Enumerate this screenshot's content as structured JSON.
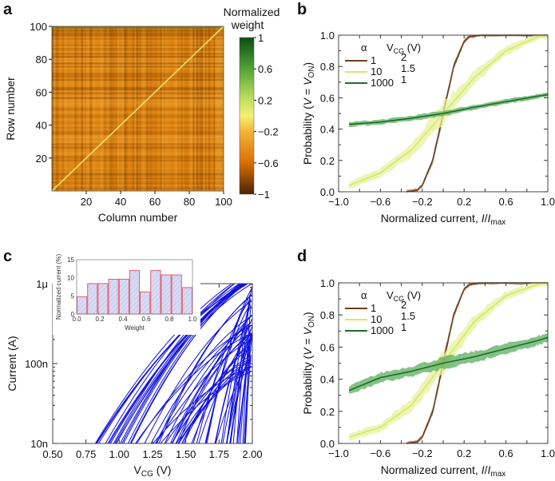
{
  "panel_labels": [
    "a",
    "b",
    "c",
    "d"
  ],
  "chart_data": [
    {
      "id": "a",
      "type": "heatmap",
      "xlabel": "Column number",
      "ylabel": "Row number",
      "x_range": [
        0,
        100
      ],
      "y_range": [
        0,
        100
      ],
      "xticks": [
        20,
        40,
        60,
        80,
        100
      ],
      "yticks": [
        20,
        40,
        60,
        80,
        100
      ],
      "size": [
        100,
        100
      ],
      "base_value": -0.5,
      "diagonal_value": -0.05,
      "colorbar": {
        "title_line1": "Normalized",
        "title_line2": "weight",
        "range": [
          -1,
          1
        ],
        "ticks": [
          "1",
          "0.6",
          "0.2",
          "−0.2",
          "−0.6",
          "−1"
        ],
        "tick_values": [
          1,
          0.6,
          0.2,
          -0.2,
          -0.6,
          -1
        ],
        "stops": [
          {
            "v": -1,
            "color": "#4a2400"
          },
          {
            "v": -0.6,
            "color": "#d86f00"
          },
          {
            "v": -0.2,
            "color": "#f5b43a"
          },
          {
            "v": 0,
            "color": "#f2f070"
          },
          {
            "v": 0.2,
            "color": "#c4e062"
          },
          {
            "v": 0.6,
            "color": "#54a336"
          },
          {
            "v": 1,
            "color": "#0b4f12"
          }
        ]
      }
    },
    {
      "id": "b",
      "type": "line",
      "xlabel": {
        "main": "Normalized current, ",
        "i": "I",
        "slash": "/",
        "i2": "I",
        "sub": "max"
      },
      "ylabel": {
        "pre": "Probability (",
        "v": "V",
        "eq": " = ",
        "v2": "V",
        "sub": "ON",
        "post": ")"
      },
      "xlim": [
        -1,
        1
      ],
      "ylim": [
        0,
        1
      ],
      "xticks": [
        "−1.0",
        "−0.6",
        "−0.2",
        "0.2",
        "0.6",
        "1.0"
      ],
      "xtick_values": [
        -1,
        -0.6,
        -0.2,
        0.2,
        0.6,
        1
      ],
      "yticks": [
        "0.0",
        "0.2",
        "0.4",
        "0.6",
        "0.8",
        "1.0"
      ],
      "ytick_values": [
        0,
        0.2,
        0.4,
        0.6,
        0.8,
        1
      ],
      "legend": {
        "alpha_header": "α",
        "vcg_header_main": "V",
        "vcg_header_sub": "CG",
        "vcg_header_unit": " (V)",
        "placement": "top-left"
      },
      "series": [
        {
          "alpha": "1",
          "vcg": "2",
          "color": "#6b3f1f",
          "band": "#a07a5a",
          "band_width": 0.03,
          "x": [
            -0.35,
            -0.25,
            -0.2,
            -0.1,
            0,
            0.1,
            0.2,
            0.25,
            0.35,
            1.0
          ],
          "y": [
            0,
            0.01,
            0.04,
            0.2,
            0.5,
            0.8,
            0.96,
            0.99,
            1,
            1
          ]
        },
        {
          "alpha": "10",
          "vcg": "1.5",
          "color": "#d4e86a",
          "band": "#e6f29a",
          "band_width": 0.06,
          "x": [
            -0.9,
            -0.6,
            -0.3,
            0,
            0.3,
            0.6,
            0.9,
            1.0
          ],
          "y": [
            0.04,
            0.12,
            0.27,
            0.5,
            0.73,
            0.9,
            0.99,
            1.0
          ]
        },
        {
          "alpha": "1000",
          "vcg": "1",
          "color": "#1e6a28",
          "band": "#5aae5e",
          "band_width": 0.012,
          "x": [
            -0.9,
            -0.6,
            -0.3,
            0,
            0.3,
            0.6,
            0.9,
            1.0
          ],
          "y": [
            0.43,
            0.445,
            0.47,
            0.5,
            0.54,
            0.575,
            0.61,
            0.62
          ]
        }
      ]
    },
    {
      "id": "c",
      "type": "line",
      "xlabel": {
        "main": "V",
        "sub": "CG",
        "unit": " (V)"
      },
      "ylabel": "Current (A)",
      "xlim": [
        0.5,
        2.0
      ],
      "ylim_log10": [
        -8,
        -6
      ],
      "yscale": "log",
      "xticks": [
        "0.50",
        "0.75",
        "1.00",
        "1.25",
        "1.50",
        "1.75",
        "2.00"
      ],
      "xtick_values": [
        0.5,
        0.75,
        1.0,
        1.25,
        1.5,
        1.75,
        2.0
      ],
      "yticks": [
        "10n",
        "100n",
        "1μ"
      ],
      "ytick_values": [
        -8,
        -7,
        -6
      ],
      "series_color": "#1010e0",
      "series_count": 70,
      "onset_voltage_range": [
        0.82,
        1.95
      ],
      "end_current_log10_range": [
        -7.3,
        -6.02
      ],
      "inset": {
        "type": "bar",
        "xlabel": "Weight",
        "ylabel": "Normalized current (%)",
        "xlim": [
          0,
          1
        ],
        "ylim": [
          0,
          15
        ],
        "xticks": [
          "0.0",
          "0.2",
          "0.4",
          "0.6",
          "0.8",
          "1.0"
        ],
        "xtick_values": [
          0,
          0.2,
          0.4,
          0.6,
          0.8,
          1.0
        ],
        "yticks": [
          "0",
          "5",
          "10",
          "15"
        ],
        "ytick_values": [
          0,
          5,
          10,
          15
        ],
        "bar_edge": "#e0606e",
        "bar_fill": "#d9daf4",
        "values": [
          4.8,
          8.4,
          8.4,
          9.6,
          9.6,
          12.0,
          6.1,
          12.0,
          10.8,
          10.8,
          7.3
        ]
      }
    },
    {
      "id": "d",
      "type": "line",
      "xlabel": {
        "main": "Normalized current, ",
        "i": "I",
        "slash": "/",
        "i2": "I",
        "sub": "max"
      },
      "ylabel": {
        "pre": "Probability (",
        "v": "V",
        "eq": " = ",
        "v2": "V",
        "sub": "ON",
        "post": ")"
      },
      "xlim": [
        -1,
        1
      ],
      "ylim": [
        0,
        1
      ],
      "xticks": [
        "−1.0",
        "−0.6",
        "−0.2",
        "0.2",
        "0.6",
        "1.0"
      ],
      "xtick_values": [
        -1,
        -0.6,
        -0.2,
        0.2,
        0.6,
        1
      ],
      "yticks": [
        "0.0",
        "0.2",
        "0.4",
        "0.6",
        "0.8",
        "1.0"
      ],
      "ytick_values": [
        0,
        0.2,
        0.4,
        0.6,
        0.8,
        1
      ],
      "legend": {
        "alpha_header": "α",
        "vcg_header_main": "V",
        "vcg_header_sub": "CG",
        "vcg_header_unit": " (V)",
        "placement": "top-left"
      },
      "series": [
        {
          "alpha": "1",
          "vcg": "2",
          "color": "#6b3f1f",
          "band": "#a07a5a",
          "band_width": 0.03,
          "x": [
            -0.35,
            -0.25,
            -0.2,
            -0.1,
            0,
            0.1,
            0.2,
            0.25,
            0.35,
            1.0
          ],
          "y": [
            0,
            0.01,
            0.04,
            0.2,
            0.5,
            0.8,
            0.96,
            0.99,
            1,
            1
          ]
        },
        {
          "alpha": "10",
          "vcg": "1.5",
          "color": "#d4e86a",
          "band": "#e6f29a",
          "band_width": 0.06,
          "x": [
            -0.9,
            -0.6,
            -0.3,
            0,
            0.3,
            0.6,
            0.9,
            1.0
          ],
          "y": [
            0.04,
            0.1,
            0.24,
            0.5,
            0.76,
            0.92,
            0.99,
            1.0
          ]
        },
        {
          "alpha": "1000",
          "vcg": "1",
          "color": "#1e6a28",
          "band": "#5aae5e",
          "band_width": 0.03,
          "x": [
            -0.9,
            -0.6,
            -0.3,
            0,
            0.3,
            0.6,
            0.9,
            1.0
          ],
          "y": [
            0.33,
            0.41,
            0.45,
            0.5,
            0.54,
            0.59,
            0.64,
            0.66
          ]
        }
      ]
    }
  ]
}
